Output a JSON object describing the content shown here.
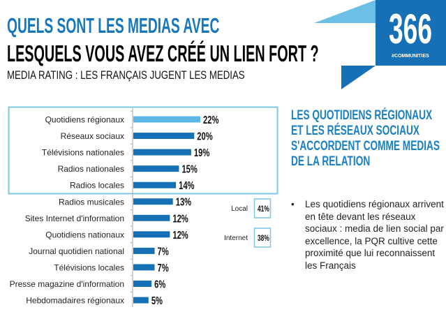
{
  "title_line1": "QUELS SONT LES MEDIAS AVEC",
  "title_line2": "LESQUELS VOUS AVEZ CRÉÉ UN LIEN FORT ?",
  "subtitle": "MEDIA RATING : LES FRANÇAIS JUGENT LES MEDIAS",
  "logo": {
    "number": "366",
    "tagline": "#COMMUNITIES"
  },
  "colors": {
    "accent": "#1777bd",
    "highlight_bar": "#5bb8e6",
    "bar": "#1670b6",
    "box_border": "#7cc6e8"
  },
  "chart_data": {
    "type": "bar",
    "orientation": "horizontal",
    "categories": [
      "Quotidiens régionaux",
      "Réseaux sociaux",
      "Télévisions nationales",
      "Radios nationales",
      "Radios locales",
      "Radios musicales",
      "Sites Internet d'information",
      "Quotidiens nationaux",
      "Journal quotidien national",
      "Télévisions locales",
      "Presse magazine d'information",
      "Hebdomadaires régionaux"
    ],
    "values": [
      22,
      20,
      19,
      15,
      14,
      13,
      12,
      12,
      7,
      7,
      6,
      5
    ],
    "value_labels": [
      "22%",
      "20%",
      "19%",
      "15%",
      "14%",
      "13%",
      "12%",
      "12%",
      "7%",
      "7%",
      "6%",
      "5%"
    ],
    "highlighted_category": "Quotidiens régionaux",
    "boxed_categories": [
      "Quotidiens régionaux",
      "Réseaux sociaux",
      "Télévisions nationales",
      "Radios nationales",
      "Radios locales"
    ],
    "grid": false,
    "side_totals": [
      {
        "label": "Local",
        "value": "41%"
      },
      {
        "label": "Internet",
        "value": "38%"
      }
    ]
  },
  "right_panel": {
    "heading": "LES QUOTIDIENS RÉGIONAUX ET LES RÉSEAUX SOCIAUX S'ACCORDENT COMME MEDIAS DE LA RELATION",
    "bullet": "Les quotidiens régionaux arrivent en tête devant les réseaux sociaux : media de lien social par excellence, la PQR cultive cette proximité que lui reconnaissent les Français"
  }
}
